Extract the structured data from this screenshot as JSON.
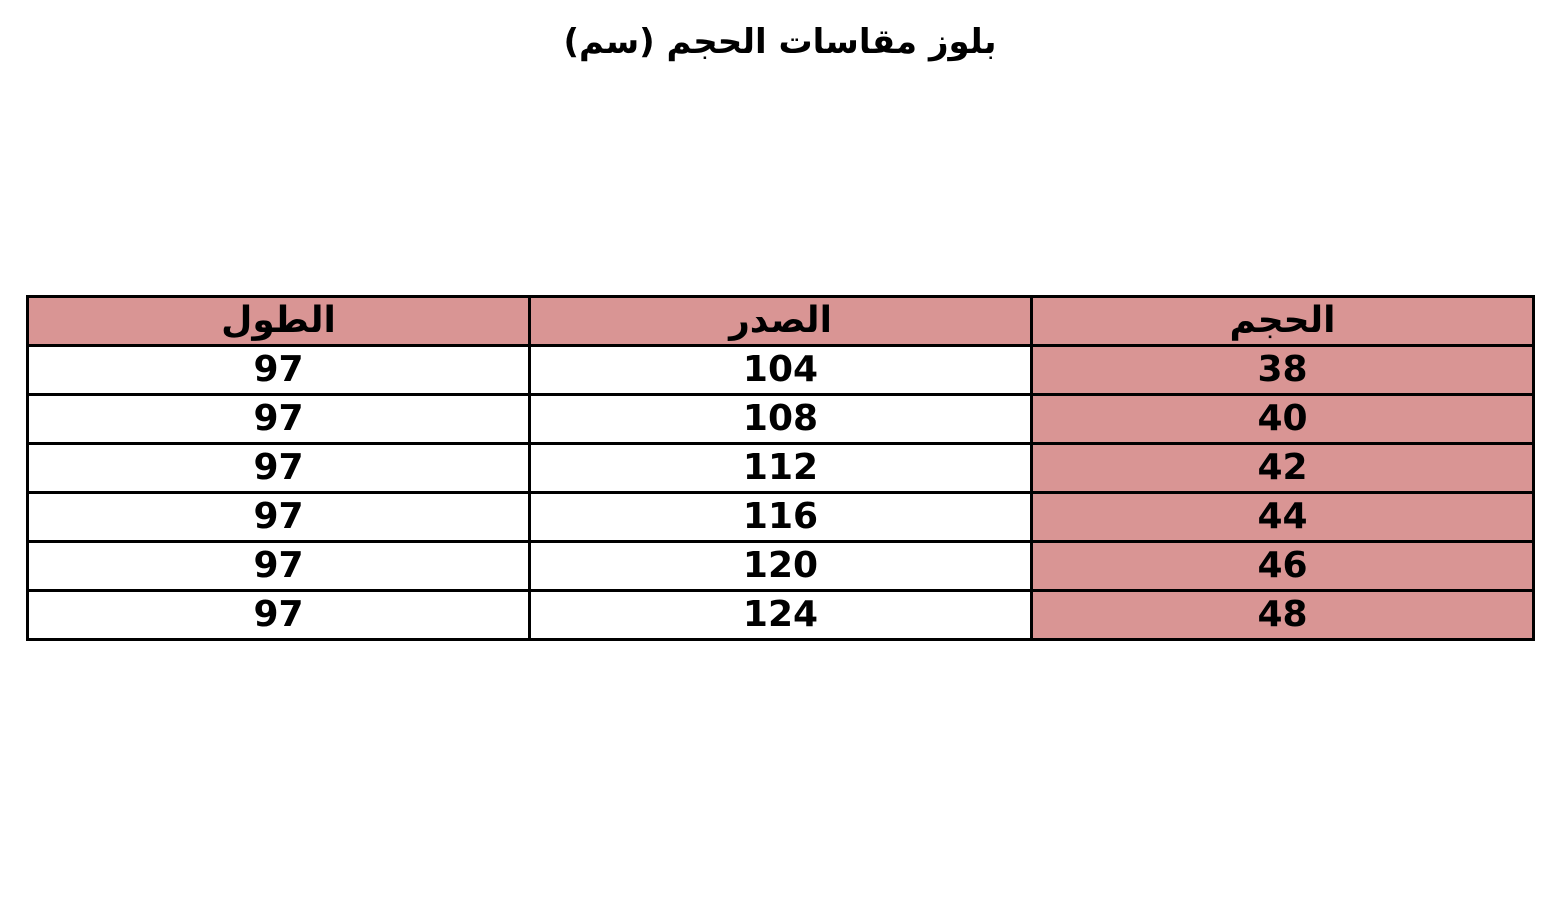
{
  "title": "بلوز مقاسات الحجم (سم)",
  "accent_color": "#d99594",
  "table": {
    "headers": [
      "الحجم",
      "الصدر",
      "الطول"
    ],
    "rows": [
      [
        "38",
        "104",
        "97"
      ],
      [
        "40",
        "108",
        "97"
      ],
      [
        "42",
        "112",
        "97"
      ],
      [
        "44",
        "116",
        "97"
      ],
      [
        "46",
        "120",
        "97"
      ],
      [
        "48",
        "124",
        "97"
      ]
    ]
  }
}
